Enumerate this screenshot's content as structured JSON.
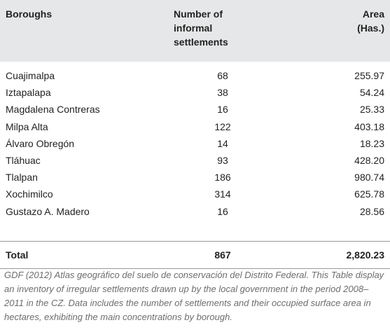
{
  "table": {
    "columns": [
      "Boroughs",
      "Number of informal settlements",
      "Area (Has.)"
    ],
    "rows": [
      [
        "Cuajimalpa",
        "68",
        "255.97"
      ],
      [
        "Iztapalapa",
        "38",
        "54.24"
      ],
      [
        "Magdalena Contreras",
        "16",
        "25.33"
      ],
      [
        "Milpa Alta",
        "122",
        "403.18"
      ],
      [
        "Álvaro Obregón",
        "14",
        "18.23"
      ],
      [
        "Tláhuac",
        "93",
        "428.20"
      ],
      [
        "Tlalpan",
        "186",
        "980.74"
      ],
      [
        "Xochimilco",
        "314",
        "625.78"
      ],
      [
        "Gustazo A. Madero",
        "16",
        "28.56"
      ]
    ],
    "total": [
      "Total",
      "867",
      "2,820.23"
    ]
  },
  "caption": "GDF (2012) Atlas geográfico del suelo de conservación del Distrito Federal. This Table display an inventory of irregular settlements drawn up by the local government in the period 2008–2011 in the CZ. Data includes the number of settlements and their occupied surface area in hectares, exhibiting the main concentrations by borough."
}
